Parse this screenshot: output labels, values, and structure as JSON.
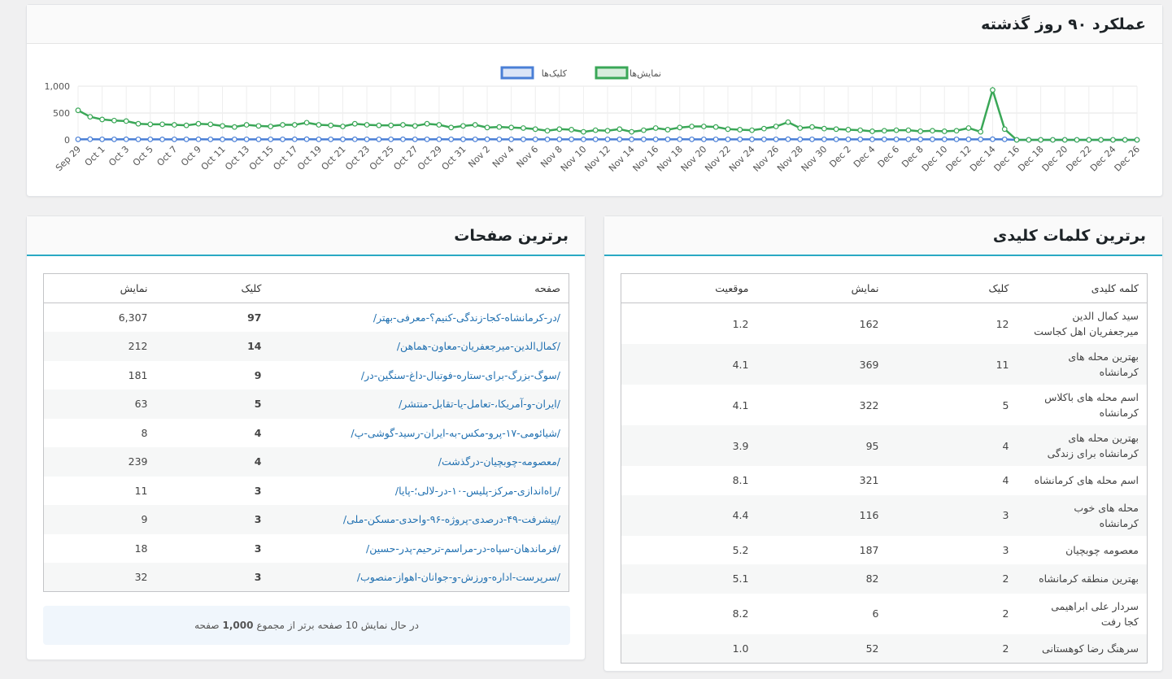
{
  "chart_data": {
    "type": "line",
    "title": "عملکرد ۹۰ روز گذشته",
    "categories": [
      "Sep 29",
      null,
      "Oct 1",
      null,
      "Oct 3",
      null,
      "Oct 5",
      null,
      "Oct 7",
      null,
      "Oct 9",
      null,
      "Oct 11",
      null,
      "Oct 13",
      null,
      "Oct 15",
      null,
      "Oct 17",
      null,
      "Oct 19",
      null,
      "Oct 21",
      null,
      "Oct 23",
      null,
      "Oct 25",
      null,
      "Oct 27",
      null,
      "Oct 29",
      null,
      "Oct 31",
      null,
      "Nov 2",
      null,
      "Nov 4",
      null,
      "Nov 6",
      null,
      "Nov 8",
      null,
      "Nov 10",
      null,
      "Nov 12",
      null,
      "Nov 14",
      null,
      "Nov 16",
      null,
      "Nov 18",
      null,
      "Nov 20",
      null,
      "Nov 22",
      null,
      "Nov 24",
      null,
      "Nov 26",
      null,
      "Nov 28",
      null,
      "Nov 30",
      null,
      "Dec 2",
      null,
      "Dec 4",
      null,
      "Dec 6",
      null,
      "Dec 8",
      null,
      "Dec 10",
      null,
      "Dec 12",
      null,
      "Dec 14",
      null,
      "Dec 16",
      null,
      "Dec 18",
      null,
      "Dec 20",
      null,
      "Dec 22",
      null,
      "Dec 24",
      null,
      "Dec 26"
    ],
    "series": [
      {
        "name": "کلیک‌ها",
        "color": "#4a7fd6",
        "values": [
          10,
          12,
          10,
          10,
          11,
          10,
          10,
          9,
          10,
          10,
          11,
          10,
          9,
          10,
          10,
          10,
          10,
          10,
          11,
          12,
          10,
          10,
          10,
          11,
          10,
          10,
          10,
          11,
          10,
          10,
          11,
          10,
          10,
          10,
          11,
          10,
          10,
          10,
          10,
          9,
          10,
          10,
          9,
          10,
          10,
          10,
          9,
          10,
          10,
          10,
          11,
          10,
          10,
          10,
          10,
          10,
          10,
          10,
          10,
          12,
          10,
          10,
          10,
          10,
          10,
          10,
          9,
          10,
          10,
          10,
          10,
          10,
          10,
          10,
          10,
          10,
          12,
          10,
          0,
          0,
          0,
          0,
          0,
          0,
          0,
          0,
          0,
          0,
          0
        ]
      },
      {
        "name": "نمایش‌ها",
        "color": "#3aa757",
        "values": [
          550,
          430,
          380,
          360,
          350,
          300,
          290,
          290,
          280,
          270,
          300,
          290,
          260,
          240,
          280,
          260,
          250,
          280,
          280,
          320,
          280,
          270,
          250,
          300,
          280,
          270,
          270,
          280,
          260,
          300,
          280,
          230,
          260,
          280,
          230,
          240,
          230,
          220,
          200,
          170,
          200,
          190,
          150,
          180,
          170,
          200,
          150,
          180,
          220,
          190,
          230,
          250,
          250,
          240,
          200,
          190,
          180,
          210,
          250,
          330,
          220,
          240,
          210,
          200,
          190,
          180,
          160,
          170,
          180,
          180,
          160,
          170,
          160,
          170,
          220,
          150,
          930,
          200,
          0,
          0,
          0,
          0,
          0,
          0,
          0,
          0,
          0,
          0,
          0
        ]
      }
    ],
    "ylim": [
      0,
      1000
    ],
    "yticks": [
      0,
      500,
      {
        "value": 1000,
        "label": "1,000"
      }
    ],
    "grid": true
  },
  "keywords": {
    "title": "برترین کلمات کلیدی",
    "headers": [
      "کلمه کلیدی",
      "کلیک",
      "نمایش",
      "موقعیت"
    ],
    "rows": [
      [
        "سید کمال الدین میرجعفریان اهل کجاست",
        "12",
        "162",
        "1.2"
      ],
      [
        "بهترین محله های کرمانشاه",
        "11",
        "369",
        "4.1"
      ],
      [
        "اسم محله های باکلاس کرمانشاه",
        "5",
        "322",
        "4.1"
      ],
      [
        "بهترین محله های کرمانشاه برای زندگی",
        "4",
        "95",
        "3.9"
      ],
      [
        "اسم محله های کرمانشاه",
        "4",
        "321",
        "8.1"
      ],
      [
        "محله های خوب کرمانشاه",
        "3",
        "116",
        "4.4"
      ],
      [
        "معصومه چوبچیان",
        "3",
        "187",
        "5.2"
      ],
      [
        "بهترین منطقه کرمانشاه",
        "2",
        "82",
        "5.1"
      ],
      [
        "سردار علی ابراهیمی کجا رفت",
        "2",
        "6",
        "8.2"
      ],
      [
        "سرهنگ رضا کوهستانی",
        "2",
        "52",
        "1.0"
      ]
    ]
  },
  "pages": {
    "title": "برترین صفحات",
    "headers": [
      "صفحه",
      "کلیک",
      "نمایش"
    ],
    "rows": [
      [
        "/در-کرمانشاه-کجا-زندگی-کنیم؟-معرفی-بهتر/",
        "97",
        "6,307"
      ],
      [
        "/کمال‌الدین-میرجعفریان-معاون-هماهن/",
        "14",
        "212"
      ],
      [
        "/سوگ-بزرگ-برای-ستاره-فوتبال-داغ-سنگین-در/",
        "9",
        "181"
      ],
      [
        "/ایران-و-آمریکا،-تعامل-یا-تقابل-منتشر/",
        "5",
        "63"
      ],
      [
        "/شیائومی-۱۷-پرو-مکس-به-ایران-رسید-گوشی-پ/",
        "4",
        "8"
      ],
      [
        "/معصومه-چوبچیان-درگذشت/",
        "4",
        "239"
      ],
      [
        "/راه‌اندازی-مرکز-پلیس-۱۰-در-لالی؛-پایا/",
        "3",
        "11"
      ],
      [
        "/پیشرفت-۴۹-درصدی-پروژه-۹۶-واحدی-مسکن-ملی/",
        "3",
        "9"
      ],
      [
        "/فرماندهان-سپاه-در-مراسم-ترحیم-پدر-حسین/",
        "3",
        "18"
      ],
      [
        "/سرپرست-اداره-ورزش-و-جوانان-اهواز-منصوب/",
        "3",
        "32"
      ]
    ],
    "footer": {
      "before": "در حال نمایش 10 صفحه برتر از مجموع",
      "total": "1,000",
      "after": "صفحه"
    }
  }
}
